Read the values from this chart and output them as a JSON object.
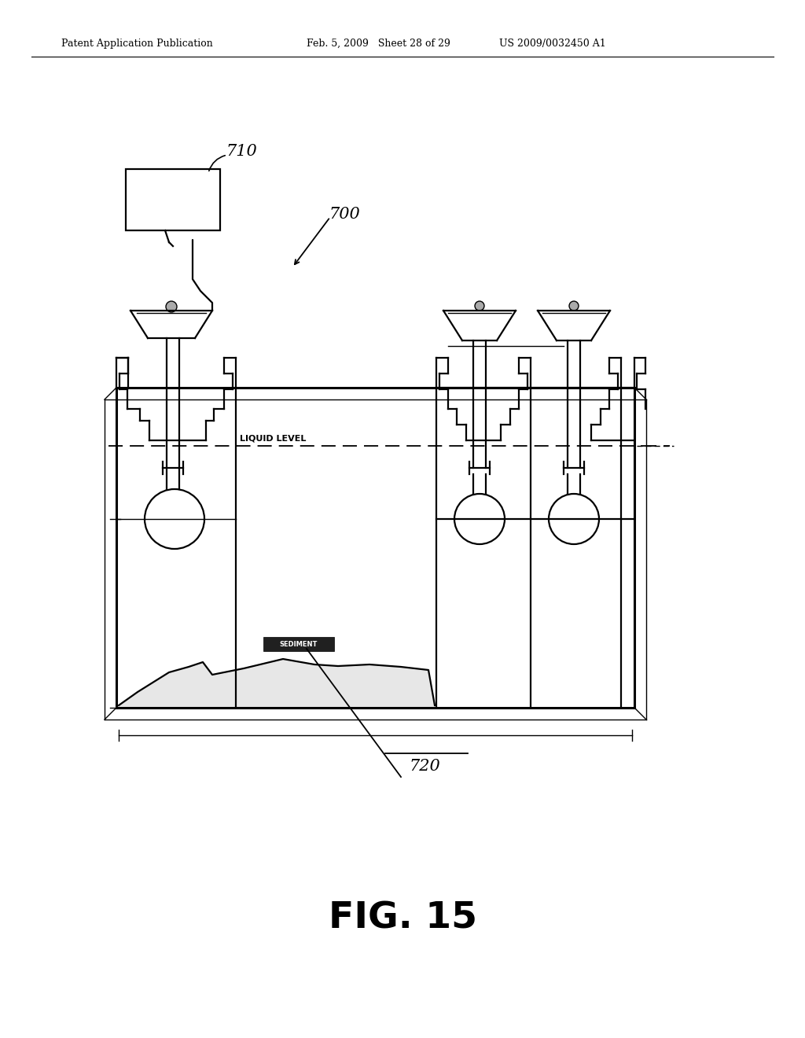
{
  "background_color": "#ffffff",
  "header_left": "Patent Application Publication",
  "header_mid": "Feb. 5, 2009   Sheet 28 of 29",
  "header_right": "US 2009/0032450 A1",
  "figure_label": "FIG. 15",
  "label_710": "710",
  "label_700": "700",
  "label_720": "720",
  "label_liquid": "LIQUID LEVEL",
  "color": "#000000",
  "lw_thick": 2.2,
  "lw_main": 1.6,
  "lw_thin": 1.0
}
